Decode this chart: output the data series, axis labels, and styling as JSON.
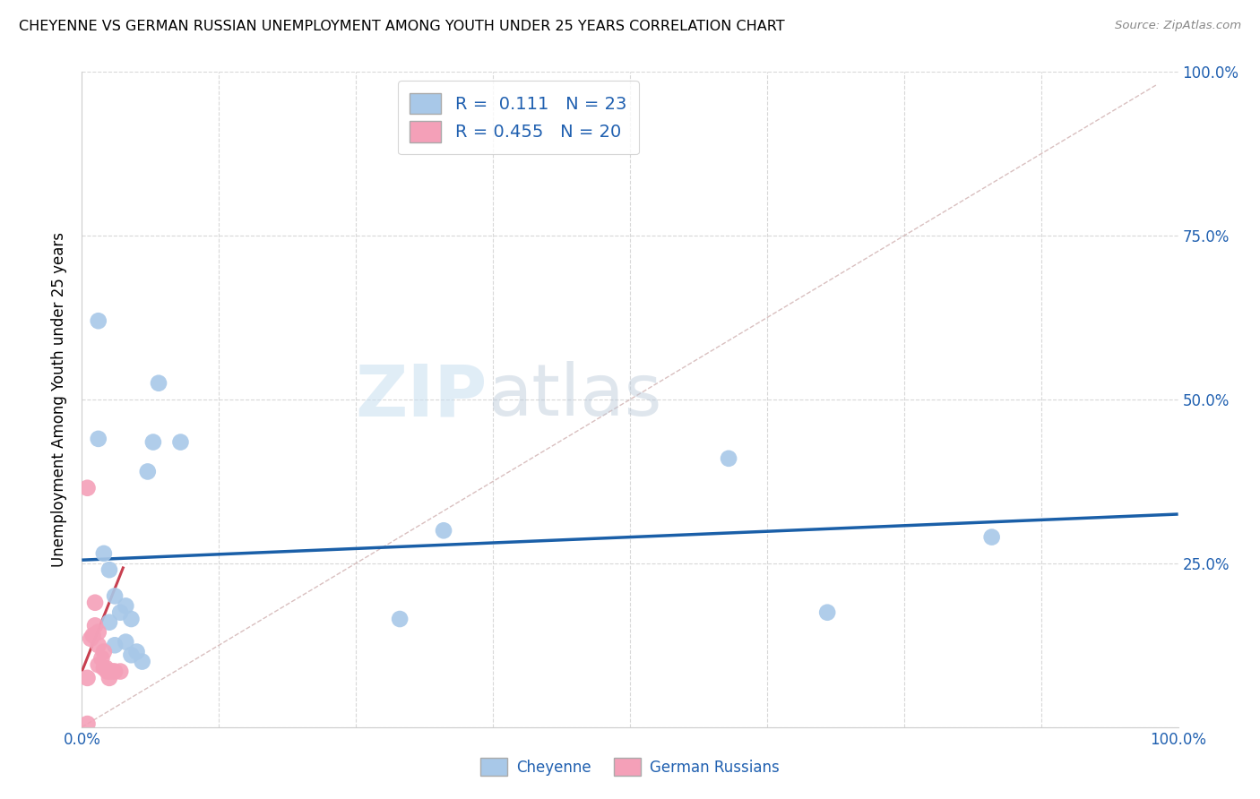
{
  "title": "CHEYENNE VS GERMAN RUSSIAN UNEMPLOYMENT AMONG YOUTH UNDER 25 YEARS CORRELATION CHART",
  "source": "Source: ZipAtlas.com",
  "ylabel": "Unemployment Among Youth under 25 years",
  "xlim": [
    0.0,
    1.0
  ],
  "ylim": [
    0.0,
    1.0
  ],
  "cheyenne_R": 0.111,
  "cheyenne_N": 23,
  "german_russian_R": 0.455,
  "german_russian_N": 20,
  "cheyenne_color": "#a8c8e8",
  "german_russian_color": "#f4a0b8",
  "cheyenne_line_color": "#1a5fa8",
  "german_russian_line_color": "#c84050",
  "watermark_zip": "ZIP",
  "watermark_atlas": "atlas",
  "cheyenne_x": [
    0.015,
    0.015,
    0.02,
    0.025,
    0.025,
    0.03,
    0.03,
    0.035,
    0.04,
    0.04,
    0.045,
    0.045,
    0.05,
    0.055,
    0.06,
    0.065,
    0.07,
    0.09,
    0.29,
    0.33,
    0.59,
    0.68,
    0.83
  ],
  "cheyenne_y": [
    0.62,
    0.44,
    0.265,
    0.24,
    0.16,
    0.2,
    0.125,
    0.175,
    0.185,
    0.13,
    0.11,
    0.165,
    0.115,
    0.1,
    0.39,
    0.435,
    0.525,
    0.435,
    0.165,
    0.3,
    0.41,
    0.175,
    0.29
  ],
  "german_russian_x": [
    0.005,
    0.005,
    0.008,
    0.01,
    0.012,
    0.012,
    0.015,
    0.015,
    0.015,
    0.018,
    0.02,
    0.02,
    0.022,
    0.023,
    0.025,
    0.025,
    0.028,
    0.03,
    0.035,
    0.005
  ],
  "german_russian_y": [
    0.365,
    0.075,
    0.135,
    0.14,
    0.19,
    0.155,
    0.145,
    0.125,
    0.095,
    0.105,
    0.115,
    0.09,
    0.09,
    0.085,
    0.085,
    0.075,
    0.085,
    0.085,
    0.085,
    0.005
  ],
  "cheyenne_trend_x": [
    0.0,
    1.0
  ],
  "cheyenne_trend_y": [
    0.255,
    0.325
  ],
  "german_russian_trend_x": [
    0.0,
    0.038
  ],
  "german_russian_trend_y": [
    0.085,
    0.245
  ],
  "identity_line_x": [
    0.0,
    0.98
  ],
  "identity_line_y": [
    0.0,
    0.98
  ],
  "background_color": "#ffffff",
  "grid_color": "#d8d8d8"
}
